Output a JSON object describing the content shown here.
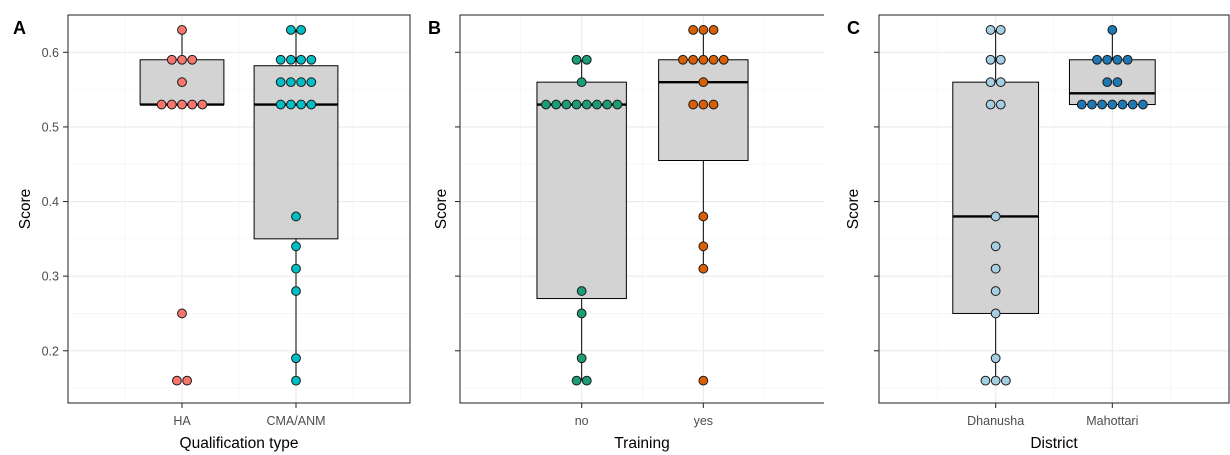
{
  "chart_data": [
    {
      "type": "box",
      "panel_label": "A",
      "xlabel": "Qualification type",
      "ylabel": "Score",
      "ylim": [
        0.13,
        0.65
      ],
      "y_ticks": [
        0.2,
        0.3,
        0.4,
        0.5,
        0.6
      ],
      "y_tick_labels": [
        "0.2",
        "0.3",
        "0.4",
        "0.5",
        "0.6"
      ],
      "grid": true,
      "categories": [
        {
          "name": "HA",
          "color": "#f8766d",
          "box": {
            "min": 0.53,
            "q1": 0.53,
            "median": 0.53,
            "q3": 0.59,
            "max": 0.63
          },
          "points": [
            0.63,
            0.59,
            0.59,
            0.59,
            0.56,
            0.53,
            0.53,
            0.53,
            0.53,
            0.53,
            0.25,
            0.16,
            0.16
          ]
        },
        {
          "name": "CMA/ANM",
          "color": "#00bfc4",
          "box": {
            "min": 0.16,
            "q1": 0.35,
            "median": 0.53,
            "q3": 0.582,
            "max": 0.63
          },
          "points": [
            0.63,
            0.63,
            0.59,
            0.59,
            0.59,
            0.59,
            0.56,
            0.56,
            0.56,
            0.56,
            0.53,
            0.53,
            0.53,
            0.53,
            0.38,
            0.34,
            0.31,
            0.28,
            0.19,
            0.16
          ]
        }
      ]
    },
    {
      "type": "box",
      "panel_label": "B",
      "xlabel": "Training",
      "ylabel": "Score",
      "ylim": [
        0.13,
        0.65
      ],
      "y_ticks": [
        0.2,
        0.3,
        0.4,
        0.5,
        0.6
      ],
      "y_tick_labels": [],
      "grid": true,
      "categories": [
        {
          "name": "no",
          "color": "#1b9e77",
          "box": {
            "min": 0.16,
            "q1": 0.27,
            "median": 0.53,
            "q3": 0.56,
            "max": 0.59
          },
          "points": [
            0.59,
            0.59,
            0.56,
            0.53,
            0.53,
            0.53,
            0.53,
            0.53,
            0.53,
            0.53,
            0.53,
            0.28,
            0.25,
            0.19,
            0.16,
            0.16
          ]
        },
        {
          "name": "yes",
          "color": "#d95f02",
          "box": {
            "min": 0.31,
            "q1": 0.455,
            "median": 0.56,
            "q3": 0.59,
            "max": 0.63
          },
          "points": [
            0.63,
            0.63,
            0.63,
            0.59,
            0.59,
            0.59,
            0.59,
            0.59,
            0.56,
            0.53,
            0.53,
            0.53,
            0.38,
            0.34,
            0.31,
            0.16
          ]
        }
      ]
    },
    {
      "type": "box",
      "panel_label": "C",
      "xlabel": "District",
      "ylabel": "Score",
      "ylim": [
        0.13,
        0.65
      ],
      "y_ticks": [
        0.2,
        0.3,
        0.4,
        0.5,
        0.6
      ],
      "y_tick_labels": [],
      "grid": true,
      "categories": [
        {
          "name": "Dhanusha",
          "color": "#a6cee3",
          "box": {
            "min": 0.16,
            "q1": 0.25,
            "median": 0.38,
            "q3": 0.56,
            "max": 0.63
          },
          "points": [
            0.63,
            0.63,
            0.59,
            0.59,
            0.56,
            0.56,
            0.53,
            0.53,
            0.38,
            0.34,
            0.31,
            0.28,
            0.25,
            0.19,
            0.16,
            0.16,
            0.16
          ]
        },
        {
          "name": "Mahottari",
          "color": "#1f78b4",
          "box": {
            "min": 0.53,
            "q1": 0.53,
            "median": 0.545,
            "q3": 0.59,
            "max": 0.63
          },
          "points": [
            0.63,
            0.59,
            0.59,
            0.59,
            0.59,
            0.56,
            0.56,
            0.53,
            0.53,
            0.53,
            0.53,
            0.53,
            0.53,
            0.53
          ]
        }
      ]
    }
  ]
}
